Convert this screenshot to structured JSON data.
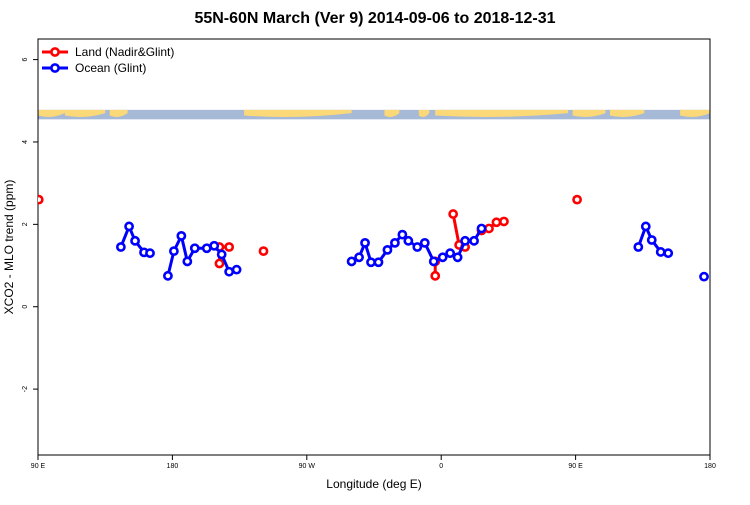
{
  "chart_data": {
    "type": "line",
    "title": "55N-60N March (Ver 9)   2014-09-06 to 2018-12-31",
    "xlabel": "Longitude (deg E)",
    "ylabel": "XCO2 - MLO trend (ppm)",
    "x_ticks": [
      {
        "value": 90,
        "label": "90 E"
      },
      {
        "value": 180,
        "label": "180"
      },
      {
        "value": 270,
        "label": "90 W"
      },
      {
        "value": 360,
        "label": "0"
      },
      {
        "value": 450,
        "label": "90 E"
      },
      {
        "value": 540,
        "label": "180"
      }
    ],
    "y_ticks": [
      {
        "value": -2,
        "label": "-2"
      },
      {
        "value": 0,
        "label": "0"
      },
      {
        "value": 2,
        "label": "2"
      },
      {
        "value": 4,
        "label": "4"
      },
      {
        "value": 6,
        "label": "6"
      }
    ],
    "xlim": [
      90,
      540
    ],
    "ylim": [
      -3.6,
      6.5
    ],
    "map_strip": {
      "y_range": [
        4.55,
        4.78
      ],
      "ocean_color": "#a6b9d6",
      "land_color": "#fcd978"
    },
    "legend_position": "top-left",
    "series": [
      {
        "name": "Land (Nadir&Glint)",
        "color": "#ff0000",
        "points": [],
        "segments": [
          [
            [
              90.5,
              2.6
            ]
          ],
          [
            [
              211.5,
              1.05
            ],
            [
              211.5,
              1.45
            ],
            [
              218,
              1.45
            ]
          ],
          [
            [
              241,
              1.35
            ]
          ],
          [
            [
              356,
              0.75
            ],
            [
              356,
              1.1
            ]
          ],
          [
            [
              368,
              2.25
            ],
            [
              372,
              1.5
            ],
            [
              376,
              1.45
            ]
          ],
          [
            [
              387,
              1.85
            ],
            [
              392,
              1.9
            ],
            [
              397,
              2.05
            ],
            [
              402,
              2.07
            ]
          ],
          [
            [
              451,
              2.6
            ]
          ]
        ]
      },
      {
        "name": "Ocean (Glint)",
        "color": "#0000ff",
        "segments": [
          [
            [
              145.5,
              1.45
            ],
            [
              151,
              1.95
            ],
            [
              155,
              1.6
            ],
            [
              161,
              1.32
            ],
            [
              165,
              1.3
            ]
          ],
          [
            [
              177,
              0.75
            ],
            [
              181,
              1.35
            ],
            [
              186,
              1.72
            ],
            [
              190,
              1.1
            ],
            [
              195,
              1.42
            ],
            [
              203,
              1.42
            ],
            [
              208,
              1.48
            ],
            [
              213,
              1.27
            ],
            [
              218,
              0.85
            ],
            [
              223,
              0.9
            ]
          ],
          [
            [
              300,
              1.1
            ],
            [
              305,
              1.2
            ],
            [
              309,
              1.55
            ],
            [
              313,
              1.08
            ],
            [
              318,
              1.08
            ],
            [
              324,
              1.38
            ],
            [
              329,
              1.55
            ],
            [
              334,
              1.75
            ],
            [
              338,
              1.6
            ],
            [
              344,
              1.45
            ],
            [
              349,
              1.55
            ],
            [
              355,
              1.1
            ],
            [
              361,
              1.2
            ],
            [
              366,
              1.3
            ],
            [
              371,
              1.2
            ],
            [
              376,
              1.6
            ],
            [
              382,
              1.6
            ],
            [
              387,
              1.9
            ]
          ],
          [
            [
              492,
              1.45
            ],
            [
              497,
              1.95
            ],
            [
              501,
              1.62
            ],
            [
              507,
              1.33
            ],
            [
              512,
              1.3
            ]
          ],
          [
            [
              536,
              0.73
            ]
          ]
        ]
      }
    ]
  }
}
